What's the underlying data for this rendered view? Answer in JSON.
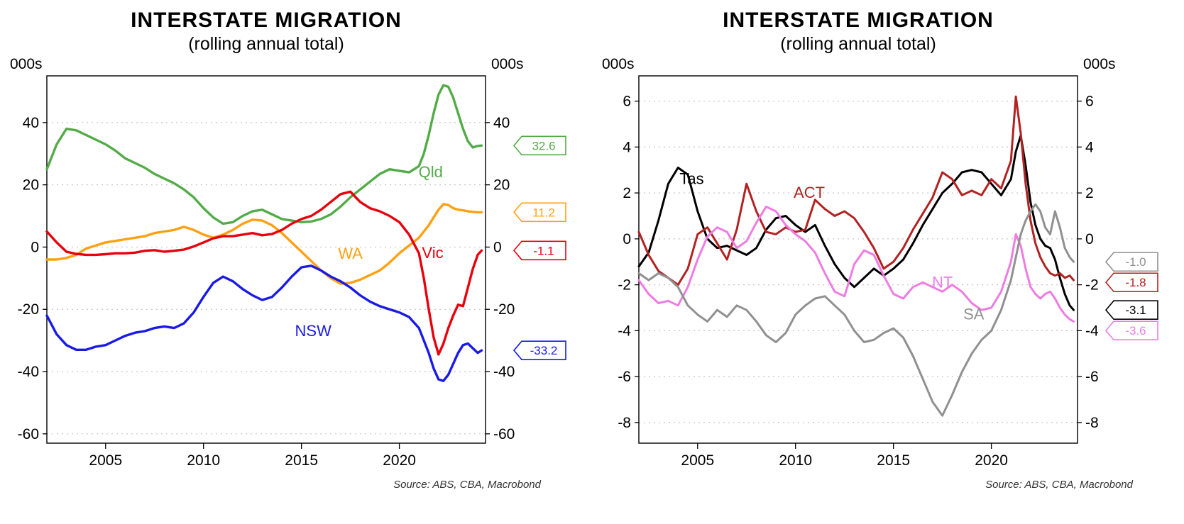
{
  "chart_data": [
    {
      "title": "INTERSTATE MIGRATION",
      "subtitle": "(rolling annual total)",
      "unit_left": "000s",
      "unit_right": "000s",
      "source": "Source: ABS, CBA, Macrobond",
      "type": "line",
      "grid": "dotted-horizontal",
      "legend_position": "inline-labels",
      "xlim": [
        2002,
        2024.4
      ],
      "ylim": [
        -63,
        55
      ],
      "xticks": [
        2005,
        2010,
        2015,
        2020
      ],
      "yticks": [
        -60,
        -40,
        -20,
        0,
        20,
        40
      ],
      "line_width": 3.4,
      "x": [
        2002,
        2002.5,
        2003,
        2003.5,
        2004,
        2004.5,
        2005,
        2005.5,
        2006,
        2006.5,
        2007,
        2007.5,
        2008,
        2008.5,
        2009,
        2009.5,
        2010,
        2010.5,
        2011,
        2011.5,
        2012,
        2012.5,
        2013,
        2013.5,
        2014,
        2014.5,
        2015,
        2015.5,
        2016,
        2016.5,
        2017,
        2017.5,
        2018,
        2018.5,
        2019,
        2019.5,
        2020,
        2020.5,
        2021,
        2021.25,
        2021.5,
        2021.75,
        2022,
        2022.25,
        2022.5,
        2022.75,
        2023,
        2023.25,
        2023.5,
        2023.75,
        2024,
        2024.2
      ],
      "series": [
        {
          "name": "Qld",
          "color": "#53ab47",
          "end_label": "32.6",
          "label_pos": {
            "x": 2021.6,
            "y": 24
          },
          "values": [
            25,
            33,
            38,
            37.5,
            36,
            34.5,
            33,
            31,
            28.5,
            27,
            25.5,
            23.5,
            22,
            20.5,
            18.5,
            16,
            12.5,
            9.5,
            7.5,
            8,
            10,
            11.5,
            12,
            10.5,
            9,
            8.5,
            8,
            8.2,
            9,
            10.5,
            13,
            16,
            18.5,
            21,
            23.5,
            25,
            24.5,
            24,
            26,
            30,
            36,
            43,
            49,
            52,
            51.5,
            48,
            43,
            38,
            34,
            32,
            32.5,
            32.6
          ]
        },
        {
          "name": "WA",
          "color": "#ffa012",
          "end_label": "11.2",
          "label_pos": {
            "x": 2017.5,
            "y": -2.2
          },
          "values": [
            -4,
            -4,
            -3.5,
            -2.5,
            -0.5,
            0.5,
            1.5,
            2,
            2.5,
            3,
            3.5,
            4.5,
            5,
            5.5,
            6.5,
            5.5,
            4,
            3,
            4,
            5.5,
            7.5,
            8.8,
            8.5,
            7,
            4.5,
            1.5,
            -1.5,
            -4.5,
            -7.5,
            -10,
            -11.8,
            -11.5,
            -10.5,
            -9,
            -7.5,
            -5,
            -2,
            0.5,
            3,
            5,
            7,
            9.5,
            12,
            13.8,
            13.5,
            12.5,
            12,
            11.8,
            11.5,
            11.3,
            11.2,
            11.2
          ]
        },
        {
          "name": "Vic",
          "color": "#e8000d",
          "end_label": "-1.1",
          "label_pos": {
            "x": 2021.7,
            "y": -1.9
          },
          "values": [
            5,
            1.5,
            -1.5,
            -2.2,
            -2.5,
            -2.5,
            -2.3,
            -2,
            -2,
            -1.8,
            -1.2,
            -1,
            -1.5,
            -1.2,
            -0.8,
            0.2,
            1.5,
            2.8,
            3.5,
            3.5,
            4,
            4.5,
            3.8,
            4.2,
            5.5,
            7.5,
            9,
            10,
            12,
            14.5,
            17,
            17.8,
            14.5,
            12.5,
            11.5,
            10,
            8,
            4,
            -2,
            -10,
            -20,
            -29,
            -34.5,
            -31,
            -26,
            -22,
            -18.5,
            -19,
            -13,
            -7,
            -2.5,
            -1.1
          ]
        },
        {
          "name": "NSW",
          "color": "#1a1ae8",
          "end_label": "-33.2",
          "label_pos": {
            "x": 2015.6,
            "y": -27
          },
          "values": [
            -22,
            -28,
            -31.5,
            -33,
            -33,
            -32,
            -31.5,
            -30,
            -28.5,
            -27.5,
            -27,
            -26,
            -25.5,
            -26,
            -24.5,
            -21,
            -16,
            -11.5,
            -9.5,
            -11,
            -13.5,
            -15.5,
            -17,
            -16,
            -13,
            -9.5,
            -6.5,
            -6,
            -7.5,
            -9.5,
            -11,
            -13,
            -15.5,
            -17.5,
            -19,
            -20,
            -21,
            -22.5,
            -26,
            -30,
            -34,
            -39,
            -42.5,
            -43,
            -41,
            -37.5,
            -34,
            -31.5,
            -31,
            -32.5,
            -34,
            -33.2
          ]
        }
      ]
    },
    {
      "title": "INTERSTATE MIGRATION",
      "subtitle": "(rolling annual total)",
      "unit_left": "000s",
      "unit_right": "000s",
      "source": "Source: ABS, CBA, Macrobond",
      "type": "line",
      "grid": "dotted-horizontal",
      "legend_position": "inline-labels",
      "xlim": [
        2002,
        2024.4
      ],
      "ylim": [
        -8.9,
        7.1
      ],
      "xticks": [
        2005,
        2010,
        2015,
        2020
      ],
      "yticks": [
        -8,
        -6,
        -4,
        -2,
        0,
        2,
        4,
        6
      ],
      "line_width": 3.0,
      "x": [
        2002,
        2002.5,
        2003,
        2003.5,
        2004,
        2004.5,
        2005,
        2005.5,
        2006,
        2006.5,
        2007,
        2007.5,
        2008,
        2008.5,
        2009,
        2009.5,
        2010,
        2010.5,
        2011,
        2011.5,
        2012,
        2012.5,
        2013,
        2013.5,
        2014,
        2014.5,
        2015,
        2015.5,
        2016,
        2016.5,
        2017,
        2017.5,
        2018,
        2018.5,
        2019,
        2019.5,
        2020,
        2020.5,
        2021,
        2021.25,
        2021.5,
        2021.75,
        2022,
        2022.25,
        2022.5,
        2022.75,
        2023,
        2023.25,
        2023.5,
        2023.75,
        2024,
        2024.2
      ],
      "series": [
        {
          "name": "Tas",
          "color": "#000000",
          "end_label": "-3.1",
          "label_pos": {
            "x": 2004.7,
            "y": 2.6
          },
          "values": [
            -1.2,
            -0.6,
            0.8,
            2.4,
            3.1,
            2.8,
            1.2,
            0,
            -0.4,
            -0.3,
            -0.5,
            -0.7,
            -0.4,
            0.4,
            0.9,
            1,
            0.6,
            0.3,
            0.6,
            -0.3,
            -1.1,
            -1.7,
            -2.1,
            -1.7,
            -1.3,
            -1.6,
            -1.3,
            -0.9,
            -0.2,
            0.6,
            1.3,
            2,
            2.4,
            2.9,
            3,
            2.9,
            2.4,
            1.9,
            2.6,
            3.8,
            4.5,
            3.2,
            1.6,
            0.6,
            0,
            -0.3,
            -0.4,
            -0.9,
            -1.7,
            -2.4,
            -2.9,
            -3.1
          ]
        },
        {
          "name": "ACT",
          "color": "#b22222",
          "end_label": "-1.8",
          "label_pos": {
            "x": 2010.7,
            "y": 2.0
          },
          "values": [
            0.3,
            -0.7,
            -1.4,
            -1.7,
            -2,
            -1.3,
            0.2,
            0.5,
            -0.2,
            -0.9,
            0.4,
            2.4,
            1.2,
            0.3,
            0.2,
            0.5,
            0.3,
            0.4,
            1.7,
            1.3,
            1,
            1.2,
            0.9,
            0.3,
            -0.4,
            -1.3,
            -1,
            -0.4,
            0.4,
            1.1,
            1.8,
            2.9,
            2.6,
            1.9,
            2.1,
            1.9,
            2.6,
            2.2,
            3.4,
            6.2,
            4.6,
            2.4,
            0.8,
            -0.2,
            -0.8,
            -1.2,
            -1.5,
            -1.6,
            -1.5,
            -1.7,
            -1.6,
            -1.8
          ]
        },
        {
          "name": "NT",
          "color": "#ee7ce2",
          "end_label": "-3.6",
          "label_pos": {
            "x": 2017.5,
            "y": -1.9
          },
          "values": [
            -1.8,
            -2.4,
            -2.8,
            -2.7,
            -2.9,
            -2.1,
            -0.9,
            0.1,
            0.5,
            0.3,
            -0.4,
            -0.1,
            0.7,
            1.4,
            1.2,
            0.6,
            0.2,
            -0.1,
            -0.6,
            -1.5,
            -2.3,
            -2.5,
            -1.1,
            -0.5,
            -0.7,
            -1.6,
            -2.4,
            -2.6,
            -2.1,
            -1.9,
            -2.1,
            -2.3,
            -2,
            -2.3,
            -2.8,
            -3.1,
            -3,
            -2.3,
            -1,
            0.2,
            -0.3,
            -1.3,
            -2.1,
            -2.4,
            -2.6,
            -2.4,
            -2.3,
            -2.6,
            -3,
            -3.3,
            -3.5,
            -3.6
          ]
        },
        {
          "name": "SA",
          "color": "#909090",
          "end_label": "-1.0",
          "label_pos": {
            "x": 2019.1,
            "y": -3.3
          },
          "values": [
            -1.5,
            -1.8,
            -1.5,
            -1.7,
            -2.1,
            -2.9,
            -3.3,
            -3.6,
            -3.1,
            -3.4,
            -2.9,
            -3.1,
            -3.6,
            -4.2,
            -4.5,
            -4.1,
            -3.3,
            -2.9,
            -2.6,
            -2.5,
            -2.9,
            -3.3,
            -4,
            -4.5,
            -4.4,
            -4.1,
            -3.9,
            -4.3,
            -5.1,
            -6.1,
            -7.1,
            -7.7,
            -6.8,
            -5.8,
            -5,
            -4.4,
            -4,
            -3.1,
            -1.8,
            -0.8,
            0.2,
            0.8,
            1.2,
            1.5,
            1.2,
            0.5,
            0.2,
            1.2,
            0.5,
            -0.4,
            -0.8,
            -1
          ]
        }
      ],
      "style": {
        "grid_color": "#c6c6c6",
        "axis_color": "#000000",
        "background": "#ffffff"
      }
    }
  ]
}
